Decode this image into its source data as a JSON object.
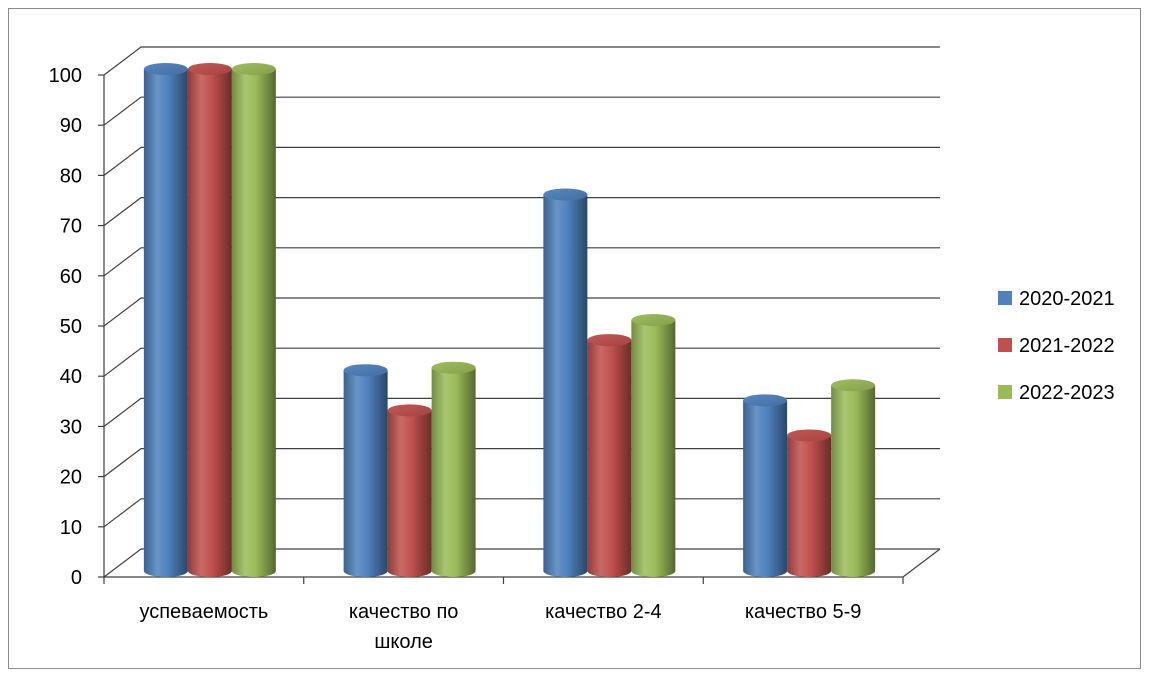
{
  "chart_data": {
    "type": "bar",
    "title": "",
    "xlabel": "",
    "ylabel": "",
    "categories": [
      [
        "успеваемость"
      ],
      [
        "качество по",
        "школе"
      ],
      [
        "качество 2-4"
      ],
      [
        "качество 5-9"
      ]
    ],
    "series": [
      {
        "name": "2020-2021",
        "color": "#4f81bd",
        "values": [
          100,
          40,
          75,
          34
        ]
      },
      {
        "name": "2021-2022",
        "color": "#c0504d",
        "values": [
          100,
          32,
          46,
          27
        ]
      },
      {
        "name": "2022-2023",
        "color": "#9bbb59",
        "values": [
          100,
          40.5,
          50,
          37
        ]
      }
    ],
    "ylim": [
      0,
      100
    ],
    "yticks": [
      0,
      10,
      20,
      30,
      40,
      50,
      60,
      70,
      80,
      90,
      100
    ],
    "grid": true,
    "legend_position": "right",
    "style": "3d-cylinder"
  }
}
